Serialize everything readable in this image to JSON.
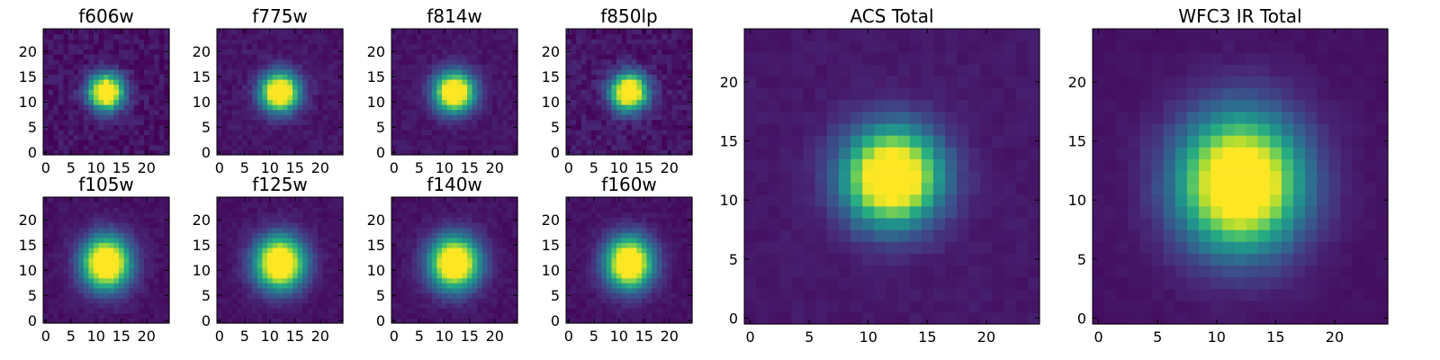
{
  "chart_data": [
    {
      "type": "heatmap",
      "title": "f606w",
      "xlim": [
        -0.5,
        24.5
      ],
      "ylim": [
        -0.5,
        24.5
      ],
      "xticks": [
        0,
        5,
        10,
        15,
        20
      ],
      "yticks": [
        0,
        5,
        10,
        15,
        20
      ],
      "center": [
        12,
        12
      ],
      "sigma": [
        2.4,
        2.4
      ],
      "peak_z": 1.0,
      "background_z": 0.05,
      "noise": 0.06,
      "colormap": "viridis"
    },
    {
      "type": "heatmap",
      "title": "f775w",
      "xlim": [
        -0.5,
        24.5
      ],
      "ylim": [
        -0.5,
        24.5
      ],
      "xticks": [
        0,
        5,
        10,
        15,
        20
      ],
      "yticks": [
        0,
        5,
        10,
        15,
        20
      ],
      "center": [
        12,
        12
      ],
      "sigma": [
        2.6,
        2.6
      ],
      "peak_z": 1.0,
      "background_z": 0.06,
      "noise": 0.04,
      "colormap": "viridis"
    },
    {
      "type": "heatmap",
      "title": "f814w",
      "xlim": [
        -0.5,
        24.5
      ],
      "ylim": [
        -0.5,
        24.5
      ],
      "xticks": [
        0,
        5,
        10,
        15,
        20
      ],
      "yticks": [
        0,
        5,
        10,
        15,
        20
      ],
      "center": [
        12,
        12
      ],
      "sigma": [
        2.7,
        2.7
      ],
      "peak_z": 1.0,
      "background_z": 0.06,
      "noise": 0.035,
      "colormap": "viridis"
    },
    {
      "type": "heatmap",
      "title": "f850lp",
      "xlim": [
        -0.5,
        24.5
      ],
      "ylim": [
        -0.5,
        24.5
      ],
      "xticks": [
        0,
        5,
        10,
        15,
        20
      ],
      "yticks": [
        0,
        5,
        10,
        15,
        20
      ],
      "center": [
        12,
        12
      ],
      "sigma": [
        2.5,
        2.5
      ],
      "peak_z": 1.0,
      "background_z": 0.06,
      "noise": 0.06,
      "colormap": "viridis"
    },
    {
      "type": "heatmap",
      "title": "f105w",
      "xlim": [
        -0.5,
        24.5
      ],
      "ylim": [
        -0.5,
        24.5
      ],
      "xticks": [
        0,
        5,
        10,
        15,
        20
      ],
      "yticks": [
        0,
        5,
        10,
        15,
        20
      ],
      "center": [
        12,
        11.5
      ],
      "sigma": [
        3.3,
        3.6
      ],
      "peak_z": 1.0,
      "background_z": 0.05,
      "noise": 0.03,
      "colormap": "viridis"
    },
    {
      "type": "heatmap",
      "title": "f125w",
      "xlim": [
        -0.5,
        24.5
      ],
      "ylim": [
        -0.5,
        24.5
      ],
      "xticks": [
        0,
        5,
        10,
        15,
        20
      ],
      "yticks": [
        0,
        5,
        10,
        15,
        20
      ],
      "center": [
        12,
        11.5
      ],
      "sigma": [
        3.4,
        3.6
      ],
      "peak_z": 1.0,
      "background_z": 0.05,
      "noise": 0.03,
      "colormap": "viridis"
    },
    {
      "type": "heatmap",
      "title": "f140w",
      "xlim": [
        -0.5,
        24.5
      ],
      "ylim": [
        -0.5,
        24.5
      ],
      "xticks": [
        0,
        5,
        10,
        15,
        20
      ],
      "yticks": [
        0,
        5,
        10,
        15,
        20
      ],
      "center": [
        12,
        11.5
      ],
      "sigma": [
        3.4,
        3.6
      ],
      "peak_z": 1.0,
      "background_z": 0.05,
      "noise": 0.03,
      "colormap": "viridis"
    },
    {
      "type": "heatmap",
      "title": "f160w",
      "xlim": [
        -0.5,
        24.5
      ],
      "ylim": [
        -0.5,
        24.5
      ],
      "xticks": [
        0,
        5,
        10,
        15,
        20
      ],
      "yticks": [
        0,
        5,
        10,
        15,
        20
      ],
      "center": [
        12,
        11.5
      ],
      "sigma": [
        3.2,
        3.5
      ],
      "peak_z": 1.0,
      "background_z": 0.05,
      "noise": 0.03,
      "colormap": "viridis"
    },
    {
      "type": "heatmap",
      "title": "ACS Total",
      "xlim": [
        -0.5,
        24.5
      ],
      "ylim": [
        -0.5,
        24.5
      ],
      "xticks": [
        0,
        5,
        10,
        15,
        20
      ],
      "yticks": [
        0,
        5,
        10,
        15,
        20
      ],
      "center": [
        12,
        12
      ],
      "sigma": [
        2.8,
        2.8
      ],
      "peak_z": 1.0,
      "background_z": 0.07,
      "noise": 0.02,
      "colormap": "viridis"
    },
    {
      "type": "heatmap",
      "title": "WFC3 IR Total",
      "xlim": [
        -0.5,
        24.5
      ],
      "ylim": [
        -0.5,
        24.5
      ],
      "xticks": [
        0,
        5,
        10,
        15,
        20
      ],
      "yticks": [
        0,
        5,
        10,
        15,
        20
      ],
      "center": [
        12,
        11.5
      ],
      "sigma": [
        3.6,
        3.9
      ],
      "peak_z": 1.0,
      "background_z": 0.05,
      "noise": 0.015,
      "colormap": "viridis"
    }
  ]
}
